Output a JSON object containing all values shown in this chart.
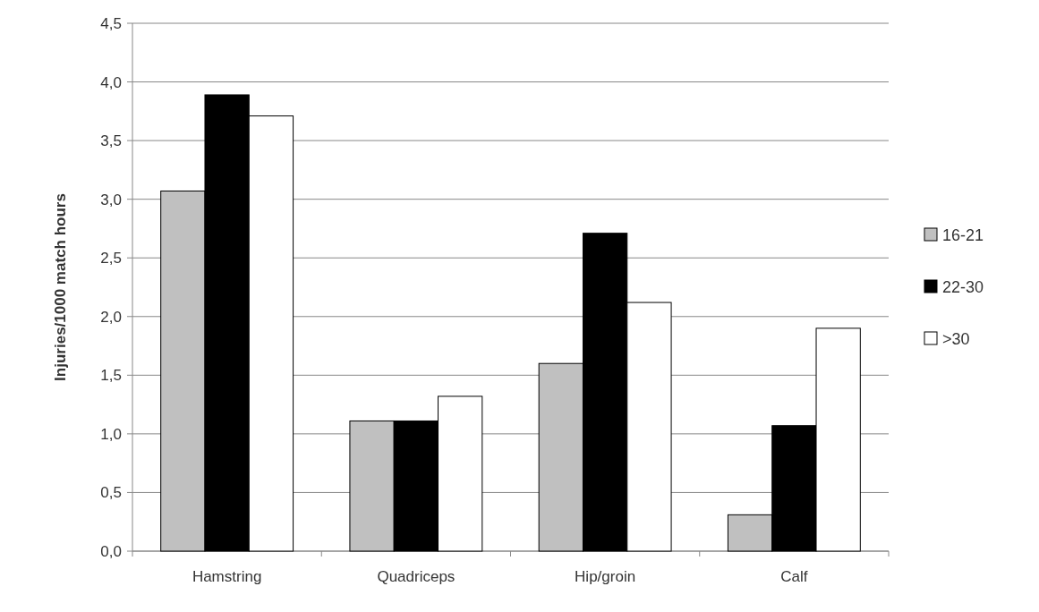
{
  "chart_data": {
    "type": "bar",
    "ylabel": "Injuries/1000 match hours",
    "categories": [
      "Hamstring",
      "Quadriceps",
      "Hip/groin",
      "Calf"
    ],
    "series": [
      {
        "name": "16-21",
        "color": "#c0c0c0",
        "values": [
          3.07,
          1.11,
          1.6,
          0.31
        ]
      },
      {
        "name": "22-30",
        "color": "#000000",
        "values": [
          3.89,
          1.11,
          2.71,
          1.07
        ]
      },
      {
        "name": ">30",
        "color": "#ffffff",
        "values": [
          3.71,
          1.32,
          2.12,
          1.9
        ]
      }
    ],
    "ylim": [
      0,
      4.5
    ],
    "yticks": [
      {
        "value": 0,
        "label": "0,0"
      },
      {
        "value": 0.5,
        "label": "0,5"
      },
      {
        "value": 1,
        "label": "1,0"
      },
      {
        "value": 1.5,
        "label": "1,5"
      },
      {
        "value": 2,
        "label": "2,0"
      },
      {
        "value": 2.5,
        "label": "2,5"
      },
      {
        "value": 3,
        "label": "3,0"
      },
      {
        "value": 3.5,
        "label": "3,5"
      },
      {
        "value": 4,
        "label": "4,0"
      },
      {
        "value": 4.5,
        "label": "4,5"
      }
    ],
    "grid": "y",
    "legend": "right"
  }
}
